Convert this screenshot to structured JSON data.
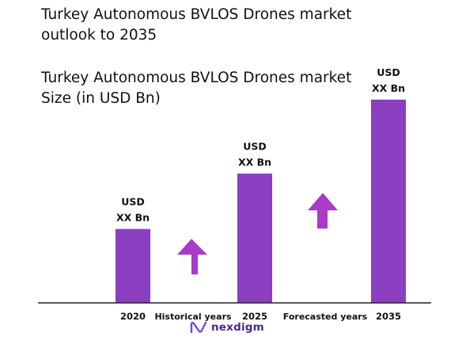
{
  "title": "Turkey Autonomous BVLOS Drones market outlook to 2035",
  "chart_data": {
    "type": "bar",
    "title": "Turkey Autonomous BVLOS Drones market Size (in USD Bn)",
    "categories": [
      "2020",
      "2025",
      "2035"
    ],
    "values": [
      1.0,
      1.75,
      2.75
    ],
    "value_labels": [
      [
        "USD",
        "XX Bn"
      ],
      [
        "USD",
        "XX Bn"
      ],
      [
        "USD",
        "XX Bn"
      ]
    ],
    "period_labels": [
      "Historical years",
      "Forecasted years"
    ],
    "ylim": [
      0,
      3
    ],
    "grid": false,
    "bar_color": "#8a3fc0",
    "arrow_color": "#a93bc9"
  },
  "logo": {
    "text": "nexdigm",
    "icon": "nexdigm-logo-icon"
  }
}
